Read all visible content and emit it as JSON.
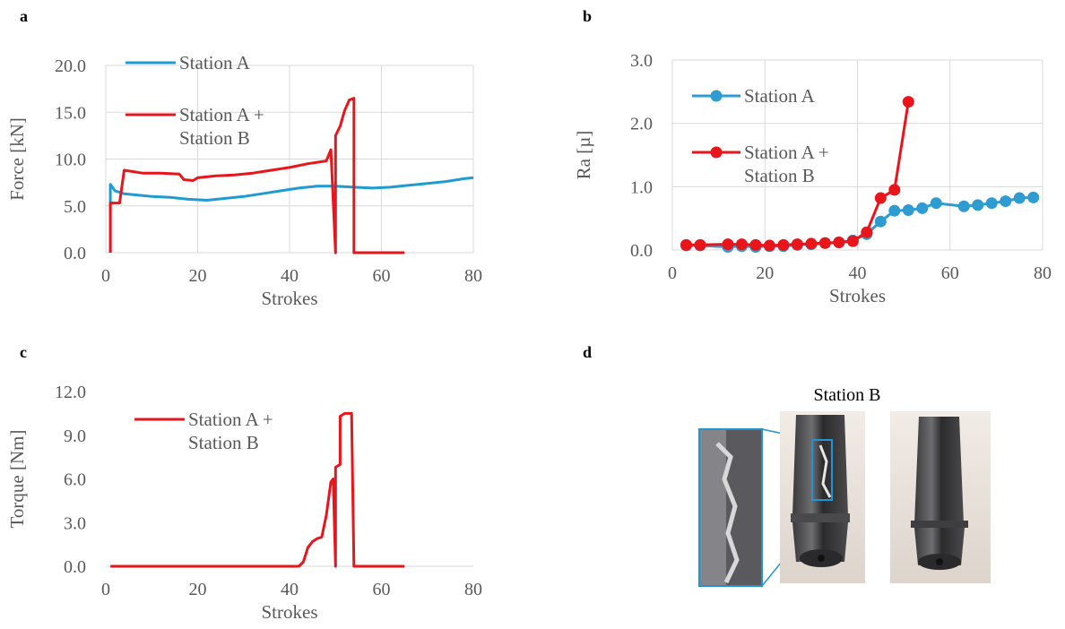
{
  "panels": {
    "a": "a",
    "b": "b",
    "c": "c",
    "d": "d"
  },
  "chart_data": [
    {
      "panel": "a",
      "type": "line",
      "xlabel": "Strokes",
      "ylabel": "Force [kN]",
      "xlim": [
        0,
        80
      ],
      "ylim": [
        0,
        20
      ],
      "xticks": [
        "0",
        "20",
        "40",
        "60",
        "80"
      ],
      "yticks": [
        "0.0",
        "5.0",
        "10.0",
        "15.0",
        "20.0"
      ],
      "grid": true,
      "legend_position": "top-left",
      "series": [
        {
          "name": "Station A",
          "color": "#1f9bd1",
          "points": [
            [
              1,
              0
            ],
            [
              1,
              7.3
            ],
            [
              2,
              6.6
            ],
            [
              4,
              6.3
            ],
            [
              6,
              6.2
            ],
            [
              10,
              6.0
            ],
            [
              14,
              5.9
            ],
            [
              18,
              5.7
            ],
            [
              22,
              5.6
            ],
            [
              26,
              5.8
            ],
            [
              30,
              6.0
            ],
            [
              34,
              6.3
            ],
            [
              38,
              6.6
            ],
            [
              42,
              6.9
            ],
            [
              46,
              7.1
            ],
            [
              50,
              7.1
            ],
            [
              54,
              7.0
            ],
            [
              58,
              6.9
            ],
            [
              62,
              7.0
            ],
            [
              66,
              7.2
            ],
            [
              70,
              7.4
            ],
            [
              74,
              7.6
            ],
            [
              78,
              7.9
            ],
            [
              80,
              8.0
            ]
          ]
        },
        {
          "name": "Station A + Station B",
          "color": "#e8151b",
          "points": [
            [
              1,
              0
            ],
            [
              1,
              5.3
            ],
            [
              3,
              5.3
            ],
            [
              4,
              8.8
            ],
            [
              8,
              8.5
            ],
            [
              12,
              8.5
            ],
            [
              16,
              8.4
            ],
            [
              17,
              7.8
            ],
            [
              19,
              7.7
            ],
            [
              20,
              8.0
            ],
            [
              24,
              8.2
            ],
            [
              28,
              8.3
            ],
            [
              32,
              8.5
            ],
            [
              36,
              8.8
            ],
            [
              40,
              9.1
            ],
            [
              44,
              9.5
            ],
            [
              48,
              9.8
            ],
            [
              49,
              11.0
            ],
            [
              50,
              0
            ],
            [
              50,
              12.5
            ],
            [
              51,
              13.5
            ],
            [
              52,
              15.2
            ],
            [
              53,
              16.3
            ],
            [
              54,
              16.5
            ],
            [
              54,
              0
            ],
            [
              65,
              0
            ]
          ]
        }
      ]
    },
    {
      "panel": "b",
      "type": "line",
      "xlabel": "Strokes",
      "ylabel": "Ra [µ]",
      "xlim": [
        0,
        80
      ],
      "ylim": [
        0,
        3
      ],
      "xticks": [
        "0",
        "20",
        "40",
        "60",
        "80"
      ],
      "yticks": [
        "0.0",
        "1.0",
        "2.0",
        "3.0"
      ],
      "grid": true,
      "legend_position": "top-left",
      "series": [
        {
          "name": "Station A",
          "color": "#2e9bd1",
          "points": [
            [
              3,
              0.07
            ],
            [
              6,
              0.07
            ],
            [
              12,
              0.05
            ],
            [
              15,
              0.06
            ],
            [
              18,
              0.05
            ],
            [
              21,
              0.06
            ],
            [
              24,
              0.06
            ],
            [
              27,
              0.08
            ],
            [
              30,
              0.09
            ],
            [
              33,
              0.11
            ],
            [
              36,
              0.12
            ],
            [
              39,
              0.15
            ],
            [
              42,
              0.25
            ],
            [
              45,
              0.45
            ],
            [
              48,
              0.62
            ],
            [
              51,
              0.63
            ],
            [
              54,
              0.66
            ],
            [
              57,
              0.74
            ],
            [
              63,
              0.69
            ],
            [
              66,
              0.71
            ],
            [
              69,
              0.74
            ],
            [
              72,
              0.77
            ],
            [
              75,
              0.82
            ],
            [
              78,
              0.83
            ]
          ]
        },
        {
          "name": "Station A + Station B",
          "color": "#e8151b",
          "points": [
            [
              3,
              0.08
            ],
            [
              6,
              0.08
            ],
            [
              12,
              0.09
            ],
            [
              15,
              0.09
            ],
            [
              18,
              0.08
            ],
            [
              21,
              0.07
            ],
            [
              24,
              0.08
            ],
            [
              27,
              0.09
            ],
            [
              30,
              0.1
            ],
            [
              33,
              0.11
            ],
            [
              36,
              0.12
            ],
            [
              39,
              0.14
            ],
            [
              42,
              0.28
            ],
            [
              45,
              0.82
            ],
            [
              48,
              0.95
            ],
            [
              51,
              2.34
            ]
          ]
        }
      ]
    },
    {
      "panel": "c",
      "type": "line",
      "xlabel": "Strokes",
      "ylabel": "Torque [Nm]",
      "xlim": [
        0,
        80
      ],
      "ylim": [
        0,
        12
      ],
      "xticks": [
        "0",
        "20",
        "40",
        "60",
        "80"
      ],
      "yticks": [
        "0.0",
        "3.0",
        "6.0",
        "9.0",
        "12.0"
      ],
      "grid": false,
      "legend_position": "top-left",
      "series": [
        {
          "name": "Station A + Station B",
          "color": "#e8151b",
          "points": [
            [
              1,
              0
            ],
            [
              42,
              0
            ],
            [
              43,
              0.3
            ],
            [
              44,
              1.3
            ],
            [
              45,
              1.7
            ],
            [
              46,
              1.9
            ],
            [
              47,
              2.0
            ],
            [
              48,
              3.5
            ],
            [
              49,
              5.8
            ],
            [
              49.5,
              6.0
            ],
            [
              50,
              0
            ],
            [
              50,
              6.8
            ],
            [
              51,
              7.0
            ],
            [
              51,
              10.3
            ],
            [
              52,
              10.5
            ],
            [
              53.5,
              10.5
            ],
            [
              54,
              0
            ],
            [
              65,
              0
            ]
          ]
        }
      ]
    }
  ],
  "photo": {
    "title": "Station B"
  }
}
